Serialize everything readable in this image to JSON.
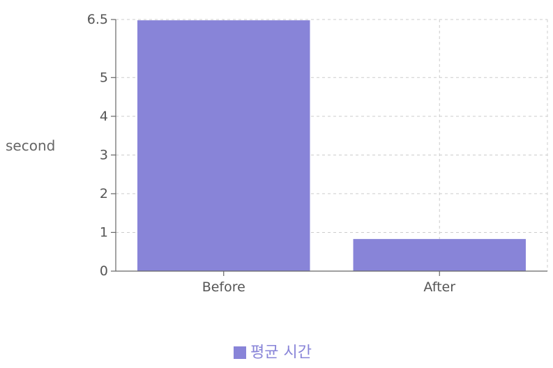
{
  "chart_data": {
    "type": "bar",
    "categories": [
      "Before",
      "After"
    ],
    "series": [
      {
        "name": "평균 시간",
        "values": [
          6.48,
          0.83
        ],
        "color": "#8884d8"
      }
    ],
    "ylabel": "second",
    "xlabel": "",
    "ylim": [
      0,
      6.5
    ],
    "yticks": [
      "0",
      "1",
      "2",
      "3",
      "4",
      "5",
      "6.5"
    ],
    "grid": true,
    "legend_position": "bottom",
    "colors": {
      "bar": "#8884d8",
      "axis": "#666666",
      "grid": "#cccccc",
      "label": "#555555"
    }
  }
}
